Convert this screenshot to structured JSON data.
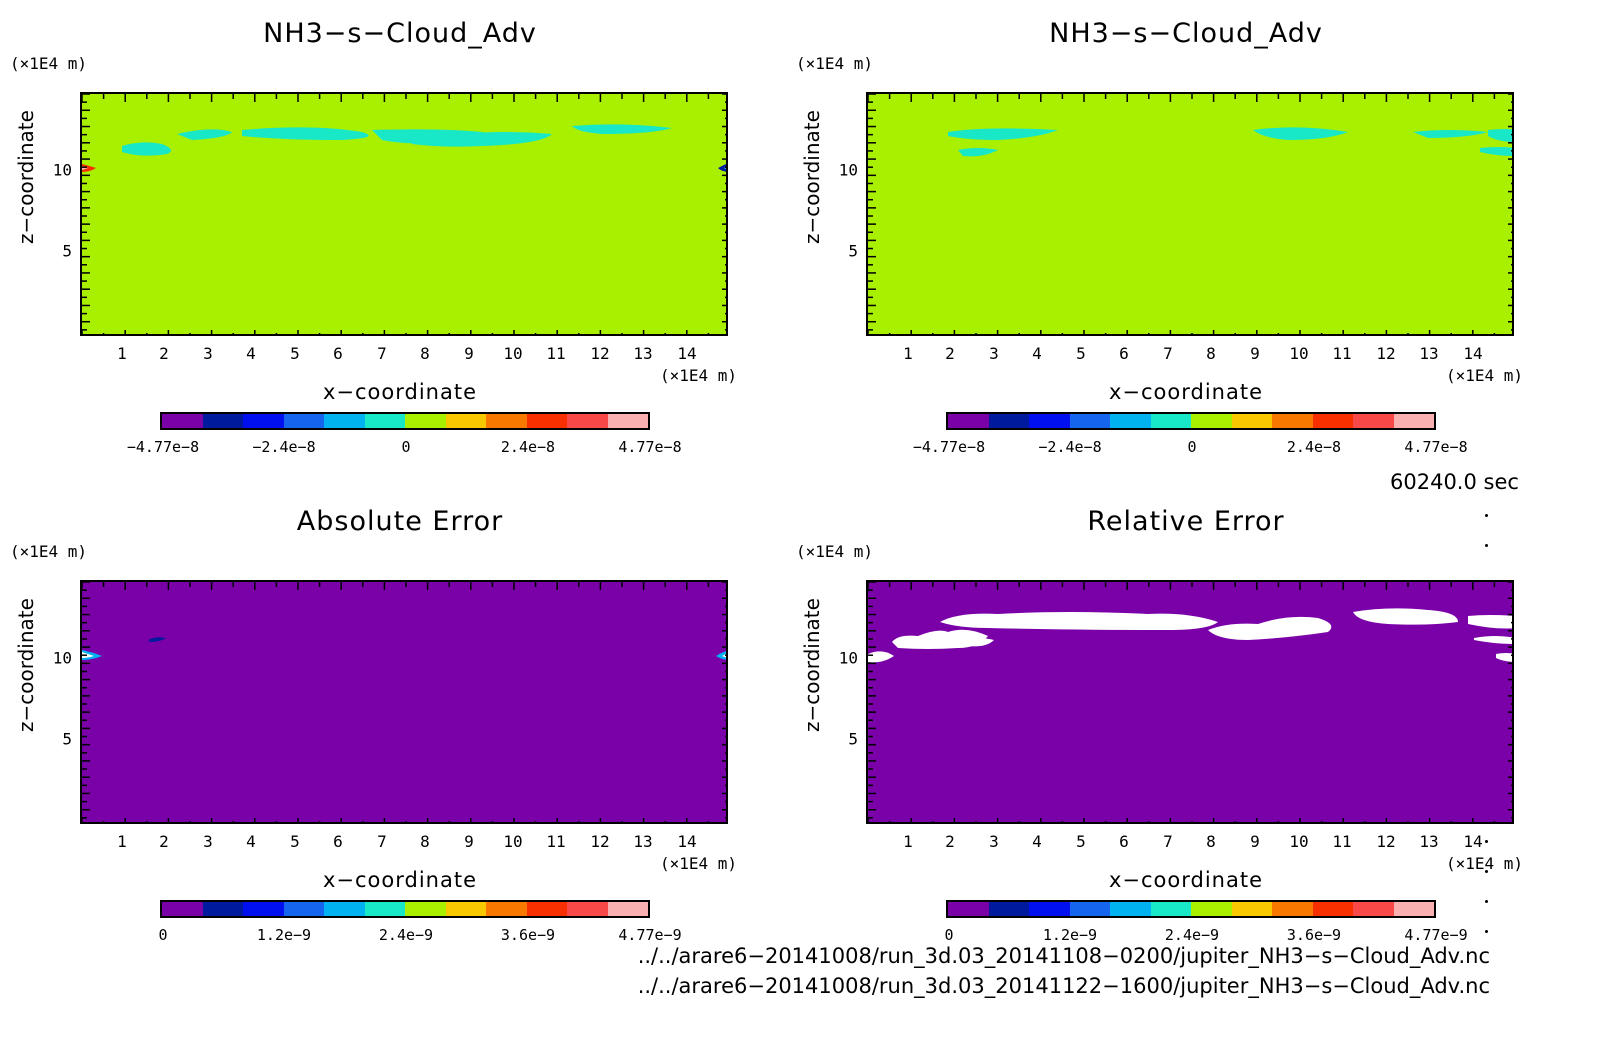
{
  "chart_data": [
    {
      "type": "heatmap",
      "title": "NH3−s−Cloud_Adv",
      "xlabel": "x−coordinate",
      "ylabel": "z−coordinate",
      "x_unit": "(×1E4 m)",
      "y_unit": "(×1E4 m)",
      "x_ticks": [
        "1",
        "2",
        "3",
        "4",
        "5",
        "6",
        "7",
        "8",
        "9",
        "10",
        "11",
        "12",
        "13",
        "14"
      ],
      "y_ticks": [
        "5",
        "10"
      ],
      "xlim": [
        0,
        15
      ],
      "ylim": [
        0,
        15
      ],
      "background_value": 0,
      "colorbar_ticks": [
        "−4.77e−8",
        "−2.4e−8",
        "0",
        "2.4e−8",
        "4.77e−8"
      ]
    },
    {
      "type": "heatmap",
      "title": "NH3−s−Cloud_Adv",
      "xlabel": "x−coordinate",
      "ylabel": "z−coordinate",
      "x_unit": "(×1E4 m)",
      "y_unit": "(×1E4 m)",
      "x_ticks": [
        "1",
        "2",
        "3",
        "4",
        "5",
        "6",
        "7",
        "8",
        "9",
        "10",
        "11",
        "12",
        "13",
        "14"
      ],
      "y_ticks": [
        "5",
        "10"
      ],
      "xlim": [
        0,
        15
      ],
      "ylim": [
        0,
        15
      ],
      "background_value": 0,
      "colorbar_ticks": [
        "−4.77e−8",
        "−2.4e−8",
        "0",
        "2.4e−8",
        "4.77e−8"
      ]
    },
    {
      "type": "heatmap",
      "title": "Absolute Error",
      "xlabel": "x−coordinate",
      "ylabel": "z−coordinate",
      "x_unit": "(×1E4 m)",
      "y_unit": "(×1E4 m)",
      "x_ticks": [
        "1",
        "2",
        "3",
        "4",
        "5",
        "6",
        "7",
        "8",
        "9",
        "10",
        "11",
        "12",
        "13",
        "14"
      ],
      "y_ticks": [
        "5",
        "10"
      ],
      "xlim": [
        0,
        15
      ],
      "ylim": [
        0,
        15
      ],
      "background_value": 0,
      "colorbar_ticks": [
        "0",
        "1.2e−9",
        "2.4e−9",
        "3.6e−9",
        "4.77e−9"
      ]
    },
    {
      "type": "heatmap",
      "title": "Relative Error",
      "xlabel": "x−coordinate",
      "ylabel": "z−coordinate",
      "x_unit": "(×1E4 m)",
      "y_unit": "(×1E4 m)",
      "x_ticks": [
        "1",
        "2",
        "3",
        "4",
        "5",
        "6",
        "7",
        "8",
        "9",
        "10",
        "11",
        "12",
        "13",
        "14"
      ],
      "y_ticks": [
        "5",
        "10"
      ],
      "xlim": [
        0,
        15
      ],
      "ylim": [
        0,
        15
      ],
      "background_value": 0,
      "colorbar_ticks": [
        "0",
        "1.2e−9",
        "2.4e−9",
        "3.6e−9",
        "4.77e−9"
      ]
    }
  ],
  "colormap": [
    "#7a00a8",
    "#001a9e",
    "#0010ee",
    "#1565ee",
    "#00b2f0",
    "#18e8c8",
    "#a8f000",
    "#f8c800",
    "#f87800",
    "#f83000",
    "#f84848",
    "#f8b0b0"
  ],
  "time_label": "60240.0 sec",
  "files": [
    "../../arare6−20141008/run_3d.03_20141108−0200/jupiter_NH3−s−Cloud_Adv.nc",
    "../../arare6−20141008/run_3d.03_20141122−1600/jupiter_NH3−s−Cloud_Adv.nc"
  ]
}
